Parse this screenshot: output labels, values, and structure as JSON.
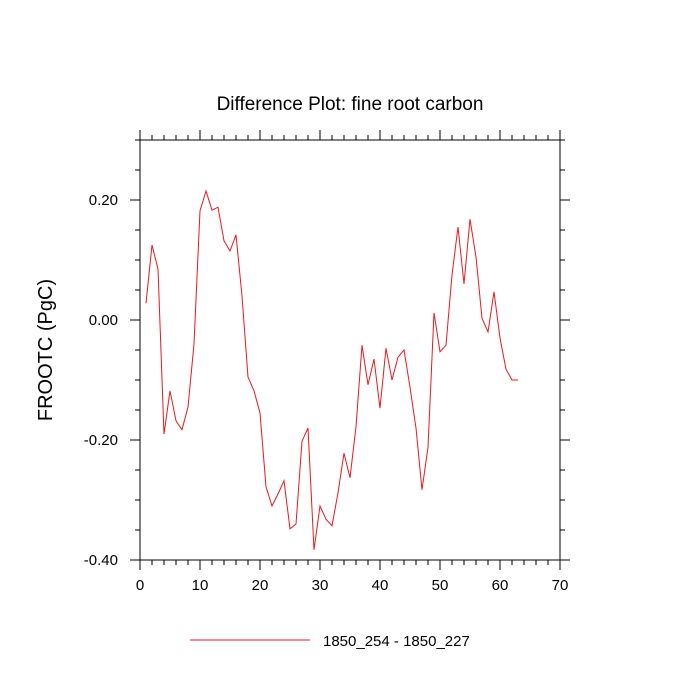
{
  "chart_data": {
    "type": "line",
    "title": "Difference Plot: fine root carbon",
    "xlabel": "",
    "ylabel": "FROOTC  (PgC)",
    "xlim": [
      0,
      70
    ],
    "ylim": [
      -0.4,
      0.3
    ],
    "x_ticks": [
      0,
      10,
      20,
      30,
      40,
      50,
      60,
      70
    ],
    "x_tick_labels": [
      "0",
      "10",
      "20",
      "30",
      "40",
      "50",
      "60",
      "70"
    ],
    "y_ticks": [
      -0.4,
      -0.2,
      0.0,
      0.2
    ],
    "y_tick_labels": [
      "-0.40",
      "-0.20",
      "0.00",
      "0.20"
    ],
    "x_minor_step": 2,
    "y_minor_step": 0.05,
    "grid": false,
    "legend_position": "bottom-center",
    "colors": {
      "series": "#e8191e",
      "axes": "#000000"
    },
    "series": [
      {
        "name": "1850_254 - 1850_227",
        "x": [
          1,
          2,
          3,
          4,
          5,
          6,
          7,
          8,
          9,
          10,
          11,
          12,
          13,
          14,
          15,
          16,
          17,
          18,
          19,
          20,
          21,
          22,
          23,
          24,
          25,
          26,
          27,
          28,
          29,
          30,
          31,
          32,
          33,
          34,
          35,
          36,
          37,
          38,
          39,
          40,
          41,
          42,
          43,
          44,
          45,
          46,
          47,
          48,
          49,
          50,
          51,
          52,
          53,
          54,
          55,
          56,
          57,
          58,
          59,
          60,
          61,
          62,
          63
        ],
        "values": [
          0.028,
          0.125,
          0.085,
          -0.19,
          -0.118,
          -0.168,
          -0.183,
          -0.145,
          -0.04,
          0.182,
          0.215,
          0.183,
          0.188,
          0.132,
          0.115,
          0.142,
          0.04,
          -0.095,
          -0.118,
          -0.155,
          -0.278,
          -0.31,
          -0.29,
          -0.268,
          -0.348,
          -0.34,
          -0.202,
          -0.18,
          -0.383,
          -0.31,
          -0.332,
          -0.343,
          -0.288,
          -0.222,
          -0.263,
          -0.178,
          -0.042,
          -0.108,
          -0.065,
          -0.147,
          -0.047,
          -0.1,
          -0.062,
          -0.05,
          -0.112,
          -0.18,
          -0.283,
          -0.212,
          0.012,
          -0.053,
          -0.042,
          0.075,
          0.155,
          0.06,
          0.168,
          0.105,
          0.003,
          -0.02,
          0.047,
          -0.03,
          -0.082,
          -0.1,
          -0.1
        ]
      }
    ]
  }
}
